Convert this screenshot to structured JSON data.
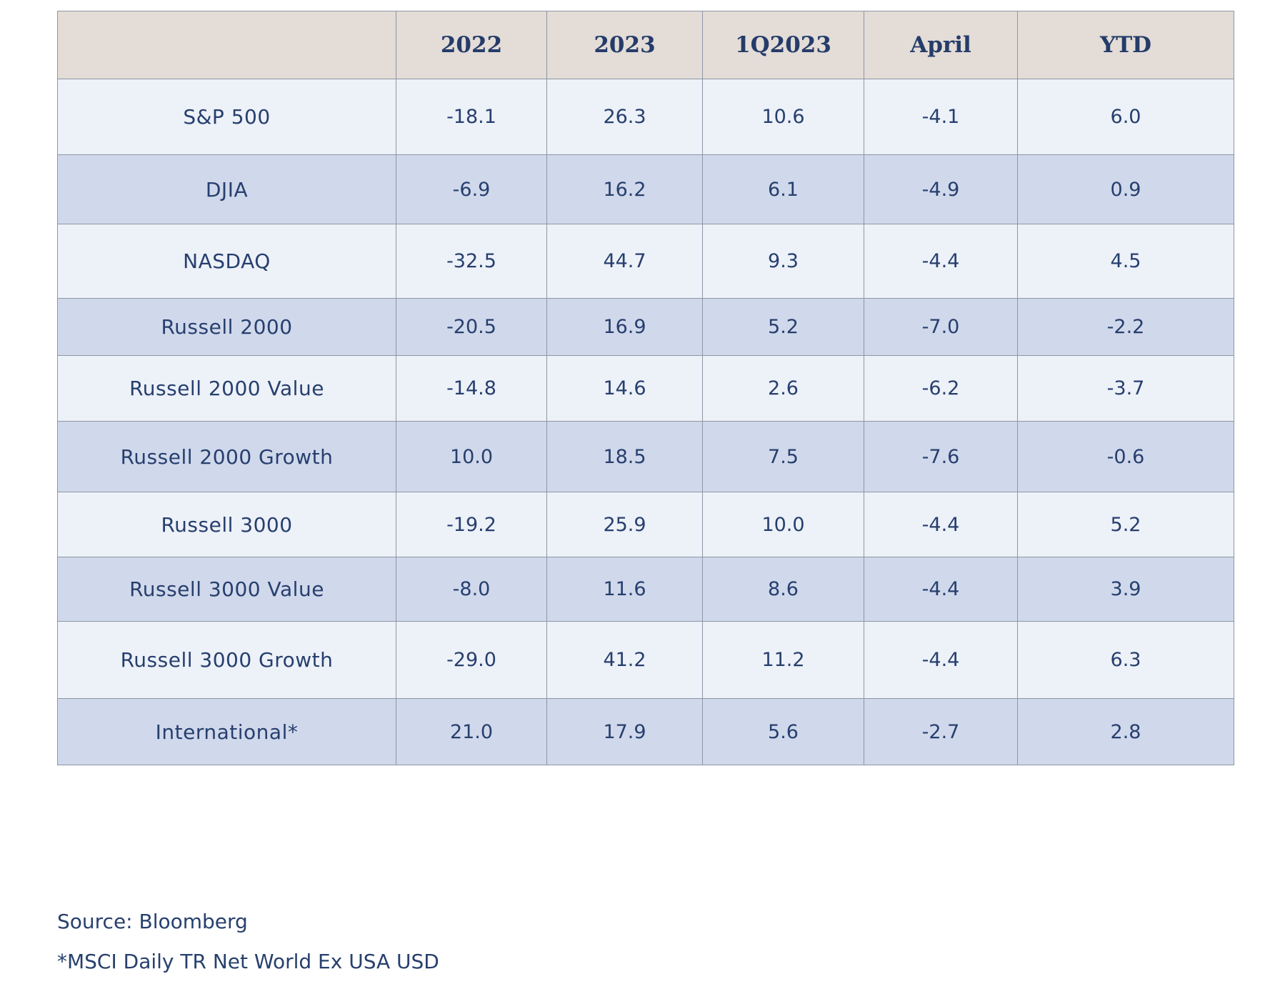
{
  "table": {
    "columns": [
      "",
      "2022",
      "2023",
      "1Q2023",
      "April",
      "YTD"
    ],
    "rows": [
      {
        "label": "S&P 500",
        "values": [
          "-18.1",
          "26.3",
          "10.6",
          "-4.1",
          "6.0"
        ]
      },
      {
        "label": "DJIA",
        "values": [
          "-6.9",
          "16.2",
          "6.1",
          "-4.9",
          "0.9"
        ]
      },
      {
        "label": "NASDAQ",
        "values": [
          "-32.5",
          "44.7",
          "9.3",
          "-4.4",
          "4.5"
        ]
      },
      {
        "label": "Russell 2000",
        "values": [
          "-20.5",
          "16.9",
          "5.2",
          "-7.0",
          "-2.2"
        ]
      },
      {
        "label": "Russell 2000 Value",
        "values": [
          "-14.8",
          "14.6",
          "2.6",
          "-6.2",
          "-3.7"
        ]
      },
      {
        "label": "Russell 2000 Growth",
        "values": [
          "10.0",
          "18.5",
          "7.5",
          "-7.6",
          "-0.6"
        ]
      },
      {
        "label": "Russell 3000",
        "values": [
          "-19.2",
          "25.9",
          "10.0",
          "-4.4",
          "5.2"
        ]
      },
      {
        "label": "Russell 3000 Value",
        "values": [
          "-8.0",
          "11.6",
          "8.6",
          "-4.4",
          "3.9"
        ]
      },
      {
        "label": "Russell 3000 Growth",
        "values": [
          "-29.0",
          "41.2",
          "11.2",
          "-4.4",
          "6.3"
        ]
      },
      {
        "label": "International*",
        "values": [
          "21.0",
          "17.9",
          "5.6",
          "-2.7",
          "2.8"
        ]
      }
    ]
  },
  "notes": {
    "source": "Source: Bloomberg",
    "footnote": "*MSCI Daily TR Net World Ex USA USD"
  },
  "colors": {
    "header_bg": "#e3dcd7",
    "row_light": "#edf1f8",
    "row_dark": "#d0d8eb",
    "text": "#243c6a",
    "border": "#8f96a3"
  }
}
